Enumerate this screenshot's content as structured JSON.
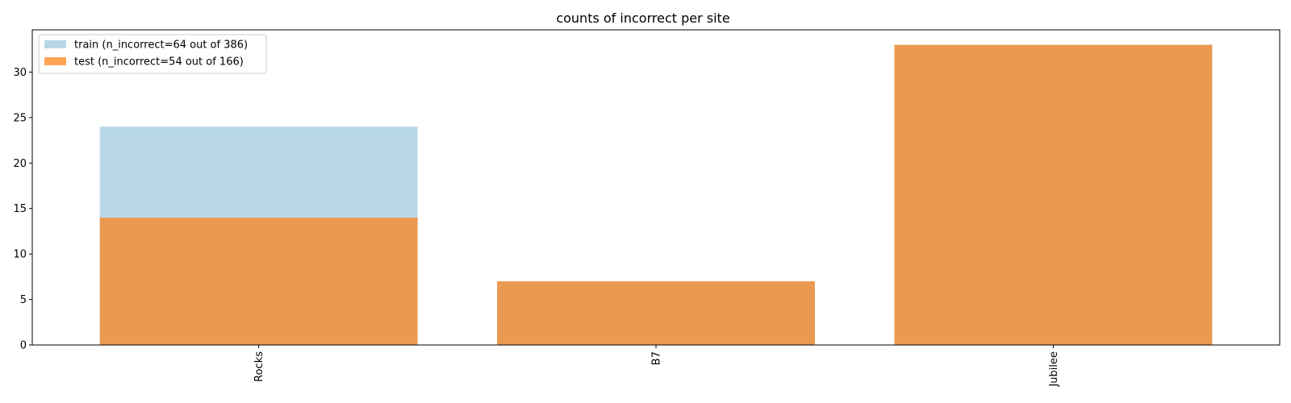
{
  "chart_data": {
    "type": "bar",
    "title": "counts of incorrect per site",
    "xlabel": "",
    "ylabel": "",
    "categories": [
      "Rocks",
      "B7",
      "Jubilee"
    ],
    "series": [
      {
        "name": "train (n_incorrect=64 out of 386)",
        "values": [
          24,
          7,
          33
        ],
        "color": "#a6cee3",
        "opacity": 0.8
      },
      {
        "name": "test (n_incorrect=54 out of 166)",
        "values": [
          14,
          7,
          33
        ],
        "color": "#ff7f0e",
        "opacity": 0.7
      }
    ],
    "ylim": [
      0,
      34.65
    ],
    "yticks": [
      0,
      5,
      10,
      15,
      20,
      25,
      30
    ],
    "grid": false,
    "legend": "top-left",
    "xtick_rotation": 90
  }
}
